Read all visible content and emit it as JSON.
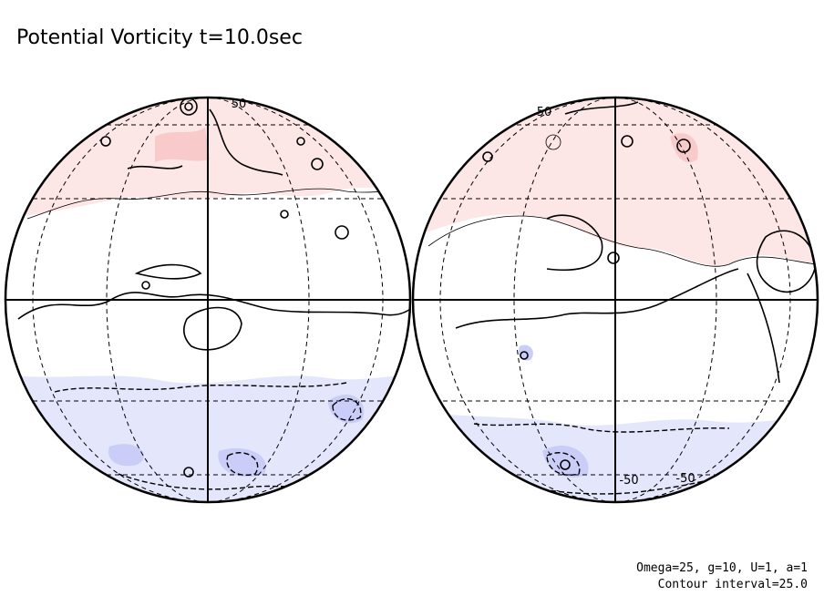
{
  "title": "Potential Vorticity t=10.0sec",
  "globes": [
    {
      "contour_labels": [
        "50"
      ]
    },
    {
      "contour_labels": [
        "50",
        "-50",
        "-50"
      ]
    }
  ],
  "footer": [
    "Omega=25, g=10, U=1, a=1",
    "Contour interval=25.0"
  ]
}
